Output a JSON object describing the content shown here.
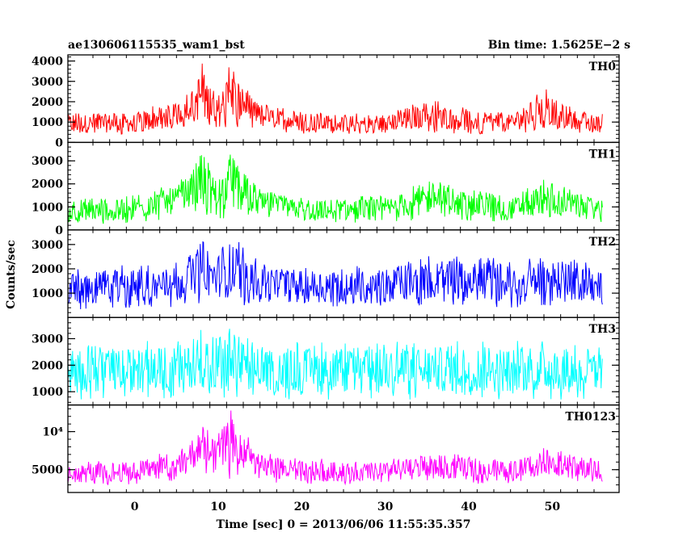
{
  "header": {
    "left_title": "ae130606115535_wam1_bst",
    "right_title": "Bin time: 1.5625E−2 s"
  },
  "axes": {
    "xlabel": "Time [sec] 0 = 2013/06/06 11:55:35.357",
    "ylabel": "Counts/sec"
  },
  "chart_data": {
    "type": "line",
    "title": "ae130606115535_wam1_bst",
    "subtitle": "Bin time: 1.5625E−2 s",
    "xlabel": "Time [sec] 0 = 2013/06/06 11:55:35.357",
    "ylabel": "Counts/sec",
    "xlim": [
      -8,
      58
    ],
    "x_data_range": [
      -8,
      56
    ],
    "xticks": [
      0,
      10,
      20,
      30,
      40,
      50
    ],
    "grid": false,
    "panels": [
      {
        "name": "TH0",
        "color": "#ff0000",
        "ylim": [
          0,
          4300
        ],
        "yticks": [
          0,
          1000,
          2000,
          3000,
          4000
        ],
        "yticklabels": [
          "0",
          "1000",
          "2000",
          "3000",
          "4000"
        ],
        "segments": [
          {
            "x": -8,
            "low": 300,
            "high": 1500
          },
          {
            "x": 0,
            "low": 350,
            "high": 1600
          },
          {
            "x": 5,
            "low": 600,
            "high": 2100
          },
          {
            "x": 7,
            "low": 1000,
            "high": 2800
          },
          {
            "x": 8,
            "low": 400,
            "high": 4300
          },
          {
            "x": 9,
            "low": 800,
            "high": 3000
          },
          {
            "x": 10,
            "low": 500,
            "high": 2600
          },
          {
            "x": 11.5,
            "low": 400,
            "high": 4100
          },
          {
            "x": 13,
            "low": 800,
            "high": 3000
          },
          {
            "x": 15,
            "low": 600,
            "high": 1900
          },
          {
            "x": 20,
            "low": 400,
            "high": 1500
          },
          {
            "x": 30,
            "low": 400,
            "high": 1400
          },
          {
            "x": 35,
            "low": 500,
            "high": 2200
          },
          {
            "x": 40,
            "low": 400,
            "high": 1700
          },
          {
            "x": 45,
            "low": 400,
            "high": 1500
          },
          {
            "x": 49,
            "low": 600,
            "high": 2700
          },
          {
            "x": 52,
            "low": 500,
            "high": 1800
          },
          {
            "x": 56,
            "low": 400,
            "high": 1400
          }
        ]
      },
      {
        "name": "TH1",
        "color": "#00ff00",
        "ylim": [
          0,
          3800
        ],
        "yticks": [
          0,
          1000,
          2000,
          3000
        ],
        "yticklabels": [
          "0",
          "1000",
          "2000",
          "3000"
        ],
        "segments": [
          {
            "x": -8,
            "low": 200,
            "high": 1300
          },
          {
            "x": 0,
            "low": 300,
            "high": 1500
          },
          {
            "x": 5,
            "low": 500,
            "high": 2100
          },
          {
            "x": 7,
            "low": 900,
            "high": 2600
          },
          {
            "x": 8,
            "low": 400,
            "high": 3800
          },
          {
            "x": 9,
            "low": 700,
            "high": 2700
          },
          {
            "x": 10,
            "low": 500,
            "high": 2500
          },
          {
            "x": 11.5,
            "low": 400,
            "high": 3700
          },
          {
            "x": 13,
            "low": 700,
            "high": 2800
          },
          {
            "x": 15,
            "low": 500,
            "high": 1800
          },
          {
            "x": 20,
            "low": 300,
            "high": 1400
          },
          {
            "x": 30,
            "low": 300,
            "high": 1500
          },
          {
            "x": 36,
            "low": 500,
            "high": 2300
          },
          {
            "x": 40,
            "low": 400,
            "high": 1800
          },
          {
            "x": 45,
            "low": 300,
            "high": 1500
          },
          {
            "x": 49,
            "low": 500,
            "high": 2200
          },
          {
            "x": 53,
            "low": 400,
            "high": 1700
          },
          {
            "x": 56,
            "low": 300,
            "high": 1400
          }
        ]
      },
      {
        "name": "TH2",
        "color": "#0000ff",
        "ylim": [
          0,
          3600
        ],
        "yticks": [
          1000,
          2000,
          3000
        ],
        "yticklabels": [
          "1000",
          "2000",
          "3000"
        ],
        "segments": [
          {
            "x": -8,
            "low": 300,
            "high": 2000
          },
          {
            "x": 0,
            "low": 400,
            "high": 2200
          },
          {
            "x": 5,
            "low": 400,
            "high": 2300
          },
          {
            "x": 7,
            "low": 700,
            "high": 2700
          },
          {
            "x": 8,
            "low": 500,
            "high": 3600
          },
          {
            "x": 9.5,
            "low": 600,
            "high": 2700
          },
          {
            "x": 11.5,
            "low": 400,
            "high": 3500
          },
          {
            "x": 13,
            "low": 500,
            "high": 2900
          },
          {
            "x": 15,
            "low": 400,
            "high": 2300
          },
          {
            "x": 20,
            "low": 400,
            "high": 2200
          },
          {
            "x": 30,
            "low": 400,
            "high": 2100
          },
          {
            "x": 36,
            "low": 500,
            "high": 2600
          },
          {
            "x": 45,
            "low": 400,
            "high": 2400
          },
          {
            "x": 50,
            "low": 500,
            "high": 2600
          },
          {
            "x": 56,
            "low": 400,
            "high": 2100
          }
        ]
      },
      {
        "name": "TH3",
        "color": "#00ffff",
        "ylim": [
          500,
          3800
        ],
        "yticks": [
          1000,
          2000,
          3000
        ],
        "yticklabels": [
          "1000",
          "2000",
          "3000"
        ],
        "segments": [
          {
            "x": -8,
            "low": 700,
            "high": 2700
          },
          {
            "x": 0,
            "low": 700,
            "high": 2900
          },
          {
            "x": 5,
            "low": 700,
            "high": 3000
          },
          {
            "x": 7,
            "low": 900,
            "high": 3000
          },
          {
            "x": 8,
            "low": 800,
            "high": 3700
          },
          {
            "x": 10,
            "low": 800,
            "high": 3100
          },
          {
            "x": 11.5,
            "low": 600,
            "high": 3700
          },
          {
            "x": 13,
            "low": 800,
            "high": 3200
          },
          {
            "x": 15,
            "low": 700,
            "high": 2800
          },
          {
            "x": 20,
            "low": 700,
            "high": 2900
          },
          {
            "x": 30,
            "low": 700,
            "high": 2900
          },
          {
            "x": 40,
            "low": 700,
            "high": 3000
          },
          {
            "x": 50,
            "low": 700,
            "high": 2900
          },
          {
            "x": 56,
            "low": 700,
            "high": 2700
          }
        ]
      },
      {
        "name": "TH0123",
        "color": "#ff00ff",
        "ylim": [
          2000,
          13500
        ],
        "yticks": [
          5000,
          10000
        ],
        "yticklabels": [
          "5000",
          "10⁴"
        ],
        "segments": [
          {
            "x": -8,
            "low": 2800,
            "high": 6000
          },
          {
            "x": 0,
            "low": 3000,
            "high": 6500
          },
          {
            "x": 5,
            "low": 3500,
            "high": 7800
          },
          {
            "x": 7,
            "low": 5000,
            "high": 9500
          },
          {
            "x": 8,
            "low": 3500,
            "high": 13500
          },
          {
            "x": 9.5,
            "low": 4000,
            "high": 9500
          },
          {
            "x": 11.5,
            "low": 3500,
            "high": 13200
          },
          {
            "x": 13,
            "low": 4500,
            "high": 10000
          },
          {
            "x": 15,
            "low": 3500,
            "high": 7500
          },
          {
            "x": 20,
            "low": 3000,
            "high": 6500
          },
          {
            "x": 30,
            "low": 3000,
            "high": 6300
          },
          {
            "x": 36,
            "low": 3500,
            "high": 7500
          },
          {
            "x": 40,
            "low": 3200,
            "high": 6800
          },
          {
            "x": 45,
            "low": 3000,
            "high": 6300
          },
          {
            "x": 49,
            "low": 4000,
            "high": 8200
          },
          {
            "x": 52,
            "low": 3500,
            "high": 7200
          },
          {
            "x": 56,
            "low": 3000,
            "high": 6200
          }
        ]
      }
    ]
  }
}
